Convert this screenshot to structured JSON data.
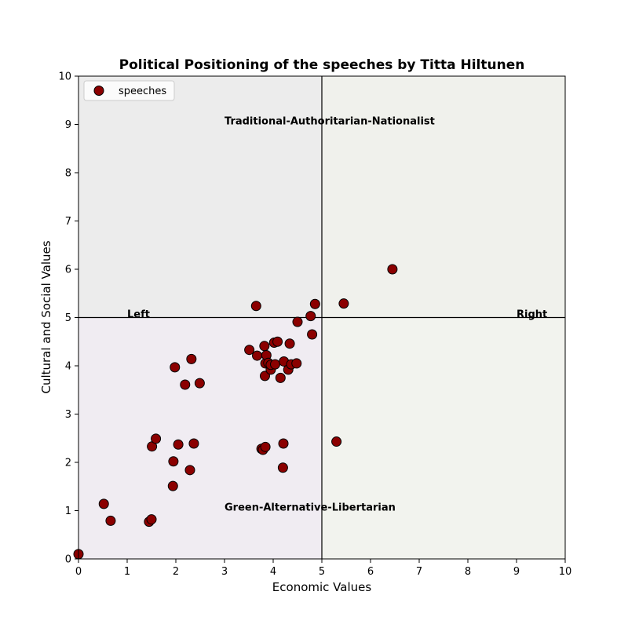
{
  "chart_data": {
    "type": "scatter",
    "title": "Political Positioning of the speeches by Titta Hiltunen",
    "xlabel": "Economic Values",
    "ylabel": "Cultural and Social Values",
    "xlim": [
      0,
      10
    ],
    "ylim": [
      0,
      10
    ],
    "xticks": [
      "0",
      "1",
      "2",
      "3",
      "4",
      "5",
      "6",
      "7",
      "8",
      "9",
      "10"
    ],
    "yticks": [
      "0",
      "1",
      "2",
      "3",
      "4",
      "5",
      "6",
      "7",
      "8",
      "9",
      "10"
    ],
    "grid": false,
    "legend": {
      "placement": "upper-left",
      "entries": [
        "speeches"
      ]
    },
    "quadrant_colors": {
      "top_left": "#ececec",
      "top_right": "#f0f1ec",
      "bottom_left": "#f0ecf2",
      "bottom_right": "#f2f3ee"
    },
    "divider_lines": {
      "x": 5,
      "y": 5
    },
    "annotations": [
      {
        "text": "Traditional-Authoritarian-Nationalist",
        "x": 3.0,
        "y": 9.0
      },
      {
        "text": "Green-Alternative-Libertarian",
        "x": 3.0,
        "y": 1.0
      },
      {
        "text": "Left",
        "x": 1.0,
        "y": 5.0
      },
      {
        "text": "Right",
        "x": 9.0,
        "y": 5.0
      }
    ],
    "series": [
      {
        "name": "speeches",
        "color": "#8b0000",
        "edge_color": "#000000",
        "x": [
          0.0,
          0.52,
          0.66,
          1.45,
          1.5,
          1.51,
          1.59,
          1.94,
          1.95,
          1.98,
          2.05,
          2.19,
          2.29,
          2.32,
          2.37,
          2.49,
          3.51,
          3.65,
          3.67,
          3.76,
          3.79,
          3.82,
          3.83,
          3.84,
          3.84,
          3.86,
          3.9,
          3.95,
          3.95,
          4.02,
          4.04,
          4.09,
          4.15,
          4.2,
          4.21,
          4.22,
          4.31,
          4.34,
          4.37,
          4.48,
          4.5,
          4.77,
          4.8,
          4.86,
          5.3,
          5.45,
          6.45
        ],
        "y": [
          0.1,
          1.14,
          0.79,
          0.77,
          0.82,
          2.33,
          2.49,
          1.51,
          2.02,
          3.97,
          2.37,
          3.61,
          1.84,
          4.14,
          2.39,
          3.64,
          4.33,
          5.24,
          4.21,
          2.28,
          2.26,
          4.41,
          3.79,
          4.05,
          2.32,
          4.22,
          4.06,
          3.92,
          4.02,
          4.48,
          4.03,
          4.5,
          3.75,
          1.89,
          2.39,
          4.09,
          3.92,
          4.46,
          4.03,
          4.05,
          4.91,
          5.03,
          4.65,
          5.28,
          2.43,
          5.29,
          6.0
        ]
      }
    ]
  }
}
